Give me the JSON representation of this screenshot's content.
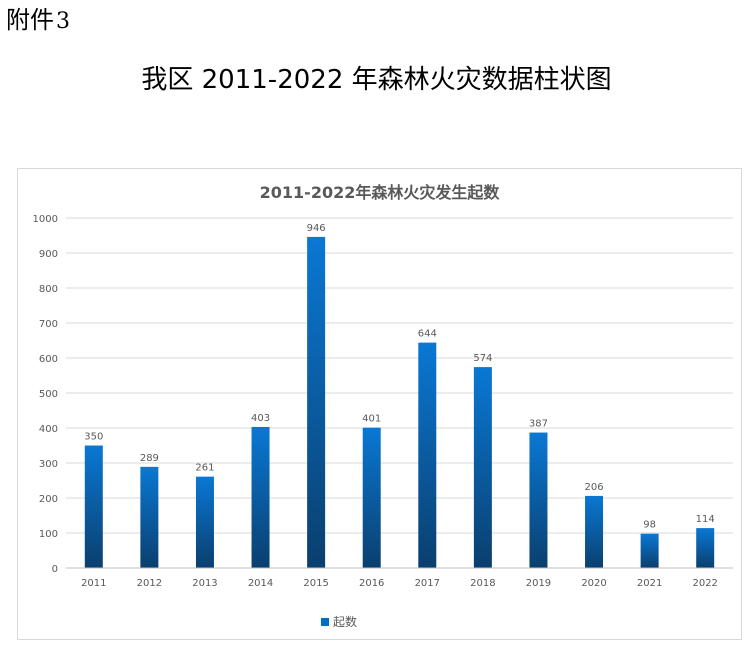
{
  "document": {
    "attachment_label": "附件",
    "attachment_number": "3",
    "title": "我区 2011-2022 年森林火灾数据柱状图"
  },
  "chart_data": {
    "type": "bar",
    "title": "2011-2022年森林火灾发生起数",
    "categories": [
      "2011",
      "2012",
      "2013",
      "2014",
      "2015",
      "2016",
      "2017",
      "2018",
      "2019",
      "2020",
      "2021",
      "2022"
    ],
    "series": [
      {
        "name": "起数",
        "values": [
          350,
          289,
          261,
          403,
          946,
          401,
          644,
          574,
          387,
          206,
          98,
          114
        ]
      }
    ],
    "ylim": [
      0,
      1000
    ],
    "yticks": [
      0,
      100,
      200,
      300,
      400,
      500,
      600,
      700,
      800,
      900,
      1000
    ],
    "grid": true,
    "legend_position": "bottom",
    "data_labels": true,
    "colors": {
      "bar_top": "#0a78d4",
      "bar_bottom": "#0a3f6e",
      "grid": "#d9d9d9",
      "text": "#595959"
    }
  }
}
